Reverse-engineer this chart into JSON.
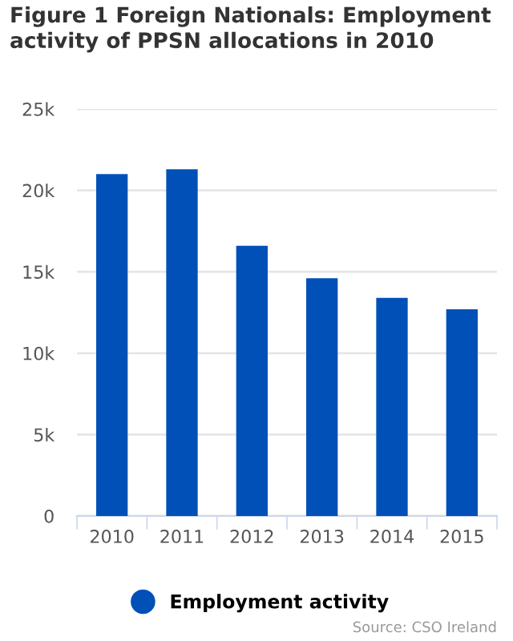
{
  "chart_data": {
    "type": "bar",
    "title": "Figure 1 Foreign Nationals: Employment activity of PPSN allocations in 2010",
    "categories": [
      "2010",
      "2011",
      "2012",
      "2013",
      "2014",
      "2015"
    ],
    "series": [
      {
        "name": "Employment activity",
        "color": "#0050b8",
        "values": [
          21000,
          21300,
          16600,
          14600,
          13400,
          12700
        ]
      }
    ],
    "ylim": [
      0,
      25000
    ],
    "yticks": [
      {
        "value": 0,
        "label": "0"
      },
      {
        "value": 5000,
        "label": "5k"
      },
      {
        "value": 10000,
        "label": "10k"
      },
      {
        "value": 15000,
        "label": "15k"
      },
      {
        "value": 20000,
        "label": "20k"
      },
      {
        "value": 25000,
        "label": "25k"
      }
    ],
    "grid": "y",
    "legend": "bottom",
    "annotations": [
      "Source: CSO Ireland"
    ]
  }
}
